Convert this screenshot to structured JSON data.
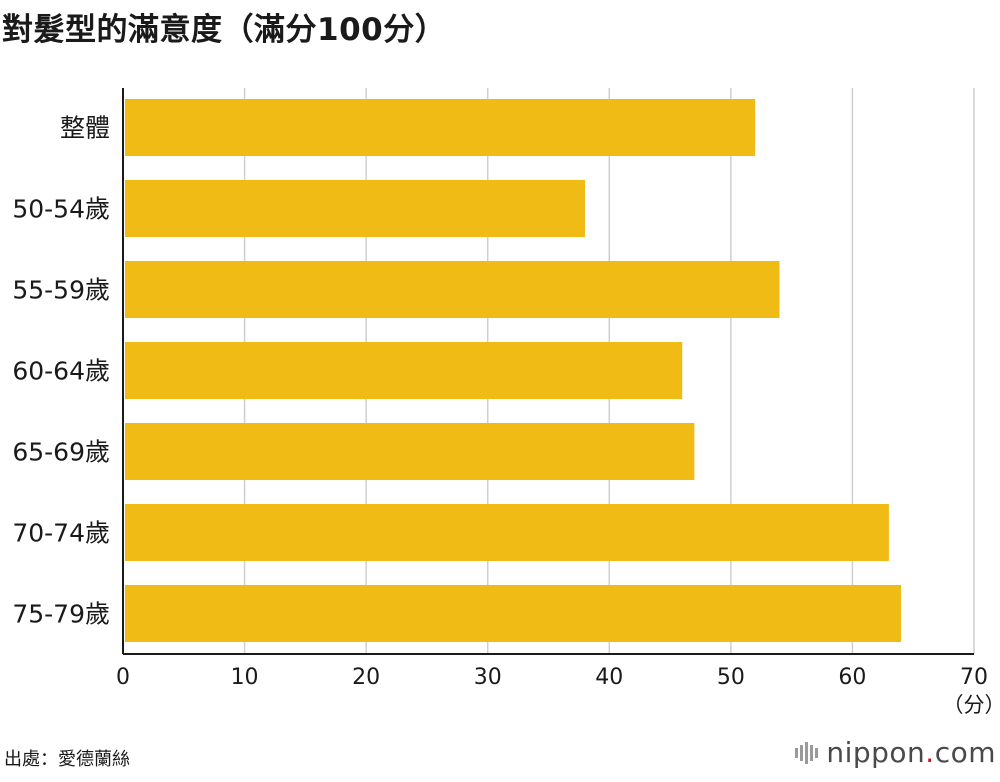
{
  "title": "對髮型的滿意度（滿分100分）",
  "source": "出處：愛德蘭絲",
  "brand": {
    "name": "nippon",
    "dot": ".",
    "suffix": "com",
    "accent": "#c8102e"
  },
  "chart_data": {
    "type": "bar",
    "orientation": "horizontal",
    "title": "對髮型的滿意度（滿分100分）",
    "categories": [
      "整體",
      "50-54歲",
      "55-59歲",
      "60-64歲",
      "65-69歲",
      "70-74歲",
      "75-79歲"
    ],
    "values": [
      52,
      38,
      54,
      46,
      47,
      63,
      64
    ],
    "xlim": [
      0,
      70
    ],
    "xticks": [
      0,
      10,
      20,
      30,
      40,
      50,
      60,
      70
    ],
    "xunit": "（分）",
    "bar_color": "#f0bb15",
    "grid": true
  }
}
